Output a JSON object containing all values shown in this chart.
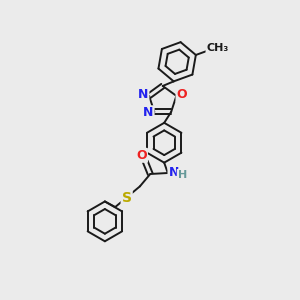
{
  "background_color": "#ebebeb",
  "bond_color": "#1a1a1a",
  "bond_width": 1.4,
  "dbo": 0.055,
  "atom_colors": {
    "N": "#2222ee",
    "O": "#ee2222",
    "S": "#bbaa00",
    "C": "#1a1a1a"
  },
  "scale": 0.44
}
